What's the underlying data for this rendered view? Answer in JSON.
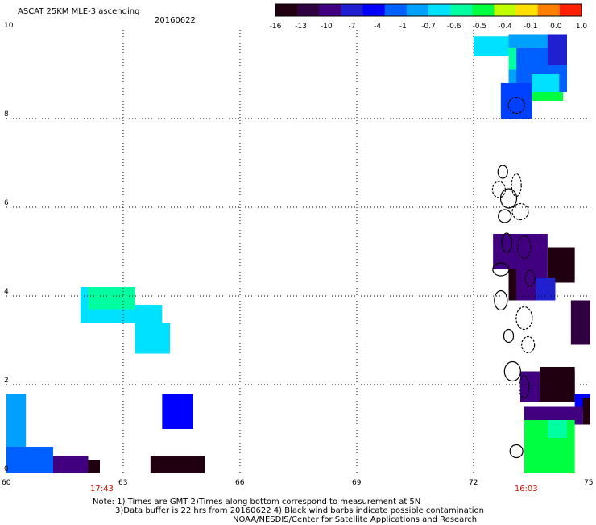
{
  "title": "ASCAT 25KM MLE-3 ascending",
  "date": "20160622",
  "colorbar": {
    "labels": [
      "-16",
      "-13",
      "-10",
      "-7",
      "-4",
      "-1",
      "-0.7",
      "-0.6",
      "-0.5",
      "-0.4",
      "-0.1",
      "0.0",
      "1.0"
    ],
    "colors": [
      "#200010",
      "#300040",
      "#400080",
      "#2020d0",
      "#0000ff",
      "#0060ff",
      "#00a0ff",
      "#00e0ff",
      "#00ffa0",
      "#00ff40",
      "#c0ff00",
      "#ffe000",
      "#ff8000",
      "#ff2000"
    ]
  },
  "axes": {
    "x_ticks": [
      "60",
      "63",
      "66",
      "69",
      "72",
      "75"
    ],
    "y_ticks": [
      "0",
      "2",
      "4",
      "6",
      "8",
      "10"
    ],
    "x_range": [
      60,
      75
    ],
    "y_range": [
      0,
      10
    ],
    "grid": true
  },
  "time_labels": [
    {
      "text": "17:43",
      "lon": 62.4
    },
    {
      "text": "16:03",
      "lon": 73.3
    }
  ],
  "notes": {
    "line1": "Note: 1) Times are GMT 2)Times along bottom correspond to measurement at 5N",
    "line2": "3)Data buffer is 22 hrs from 20160622 4) Black wind barbs indicate possible contamination",
    "line3": "NOAA/NESDIS/Center for Satellite Applications and Research"
  },
  "data_cells": [
    {
      "lon0": 72.0,
      "lon1": 73.3,
      "lat0": 9.4,
      "lat1": 9.85,
      "color": "#00e0ff"
    },
    {
      "lon0": 72.9,
      "lon1": 74.4,
      "lat0": 8.8,
      "lat1": 9.9,
      "color": "#00a0ff"
    },
    {
      "lon0": 72.9,
      "lon1": 73.1,
      "lat0": 9.1,
      "lat1": 9.6,
      "color": "#00ffa0"
    },
    {
      "lon0": 73.1,
      "lon1": 74.4,
      "lat0": 8.6,
      "lat1": 9.6,
      "color": "#0060ff"
    },
    {
      "lon0": 73.5,
      "lon1": 74.2,
      "lat0": 8.6,
      "lat1": 9.0,
      "color": "#00e0ff"
    },
    {
      "lon0": 73.5,
      "lon1": 74.3,
      "lat0": 8.4,
      "lat1": 8.6,
      "color": "#00ff40"
    },
    {
      "lon0": 73.9,
      "lon1": 74.4,
      "lat0": 9.2,
      "lat1": 9.9,
      "color": "#2020d0"
    },
    {
      "lon0": 72.7,
      "lon1": 73.5,
      "lat0": 8.0,
      "lat1": 8.8,
      "color": "#0040ff"
    },
    {
      "lon0": 72.5,
      "lon1": 73.9,
      "lat0": 4.6,
      "lat1": 5.4,
      "color": "#400080"
    },
    {
      "lon0": 73.9,
      "lon1": 74.6,
      "lat0": 4.3,
      "lat1": 5.1,
      "color": "#200010"
    },
    {
      "lon0": 72.9,
      "lon1": 73.9,
      "lat0": 3.9,
      "lat1": 4.6,
      "color": "#400080"
    },
    {
      "lon0": 72.9,
      "lon1": 73.1,
      "lat0": 3.9,
      "lat1": 4.6,
      "color": "#200010"
    },
    {
      "lon0": 73.6,
      "lon1": 74.1,
      "lat0": 3.9,
      "lat1": 4.4,
      "color": "#2020d0"
    },
    {
      "lon0": 74.5,
      "lon1": 75.0,
      "lat0": 3.6,
      "lat1": 3.9,
      "color": "#300040"
    },
    {
      "lon0": 74.5,
      "lon1": 75.0,
      "lat0": 2.9,
      "lat1": 3.6,
      "color": "#300040"
    },
    {
      "lon0": 73.2,
      "lon1": 74.6,
      "lat0": 1.6,
      "lat1": 2.3,
      "color": "#400080"
    },
    {
      "lon0": 73.7,
      "lon1": 74.6,
      "lat0": 1.6,
      "lat1": 2.4,
      "color": "#200010"
    },
    {
      "lon0": 74.6,
      "lon1": 75.0,
      "lat0": 1.4,
      "lat1": 1.8,
      "color": "#0000ff"
    },
    {
      "lon0": 74.8,
      "lon1": 75.0,
      "lat0": 1.1,
      "lat1": 1.7,
      "color": "#200010"
    },
    {
      "lon0": 73.3,
      "lon1": 74.8,
      "lat0": 1.1,
      "lat1": 1.5,
      "color": "#400080"
    },
    {
      "lon0": 73.3,
      "lon1": 74.6,
      "lat0": 0.0,
      "lat1": 1.2,
      "color": "#00ff40"
    },
    {
      "lon0": 73.9,
      "lon1": 74.4,
      "lat0": 0.8,
      "lat1": 1.2,
      "color": "#00ffa0"
    },
    {
      "lon0": 61.9,
      "lon1": 63.3,
      "lat0": 3.4,
      "lat1": 4.2,
      "color": "#00e0ff"
    },
    {
      "lon0": 62.1,
      "lon1": 63.3,
      "lat0": 3.7,
      "lat1": 4.2,
      "color": "#00ffa0"
    },
    {
      "lon0": 63.3,
      "lon1": 64.0,
      "lat0": 2.7,
      "lat1": 3.8,
      "color": "#00e0ff"
    },
    {
      "lon0": 63.5,
      "lon1": 64.2,
      "lat0": 2.7,
      "lat1": 3.4,
      "color": "#00e0ff"
    },
    {
      "lon0": 64.0,
      "lon1": 64.8,
      "lat0": 1.0,
      "lat1": 1.8,
      "color": "#0000ff"
    },
    {
      "lon0": 60.0,
      "lon1": 60.5,
      "lat0": 0.5,
      "lat1": 1.8,
      "color": "#00a0ff"
    },
    {
      "lon0": 60.0,
      "lon1": 61.2,
      "lat0": 0.0,
      "lat1": 0.6,
      "color": "#0060ff"
    },
    {
      "lon0": 61.2,
      "lon1": 62.1,
      "lat0": 0.0,
      "lat1": 0.4,
      "color": "#400080"
    },
    {
      "lon0": 62.1,
      "lon1": 62.4,
      "lat0": 0.0,
      "lat1": 0.3,
      "color": "#200010"
    },
    {
      "lon0": 63.7,
      "lon1": 65.1,
      "lat0": 0.0,
      "lat1": 0.4,
      "color": "#200010"
    }
  ],
  "islands": [
    {
      "lon": 72.75,
      "lat": 6.8
    },
    {
      "lon": 72.65,
      "lat": 6.4
    },
    {
      "lon": 72.9,
      "lat": 6.2
    },
    {
      "lon": 73.1,
      "lat": 6.5
    },
    {
      "lon": 72.8,
      "lat": 5.8
    },
    {
      "lon": 73.2,
      "lat": 5.9
    },
    {
      "lon": 72.85,
      "lat": 5.2
    },
    {
      "lon": 73.3,
      "lat": 5.1
    },
    {
      "lon": 72.7,
      "lat": 4.6
    },
    {
      "lon": 73.45,
      "lat": 4.4
    },
    {
      "lon": 72.7,
      "lat": 3.9
    },
    {
      "lon": 73.3,
      "lat": 3.5
    },
    {
      "lon": 72.9,
      "lat": 3.1
    },
    {
      "lon": 73.4,
      "lat": 2.9
    },
    {
      "lon": 73.0,
      "lat": 2.3
    },
    {
      "lon": 73.3,
      "lat": 1.95
    },
    {
      "lon": 73.1,
      "lat": 0.5
    },
    {
      "lon": 73.1,
      "lat": 8.3
    }
  ]
}
